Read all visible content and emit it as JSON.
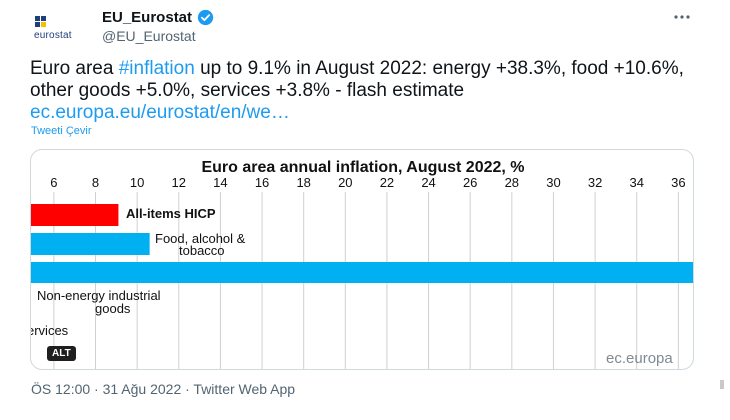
{
  "account": {
    "display_name": "EU_Eurostat",
    "handle": "@EU_Eurostat",
    "avatar_text": "eurostat"
  },
  "tweet": {
    "text_before_hashtag": "Euro area ",
    "hashtag": "#inflation",
    "text_after_hashtag": " up to 9.1% in August 2022: energy +38.3%, food +10.6%, other goods +5.0%, services +3.8% - flash estimate ",
    "link": "ec.europa.eu/eurostat/en/we…",
    "translate_label": "Tweeti Çevir",
    "meta": "ÖS 12:00 · 31 Ağu 2022 · Twitter Web App"
  },
  "media": {
    "alt_label": "ALT",
    "source": "ec.europa"
  },
  "icons": {
    "avatar": "eurostat-logo-icon",
    "verified": "verified-badge-icon",
    "more": "more-options-icon"
  },
  "colors": {
    "brand_blue": "#1d9bf0",
    "headline_red": "#ff0000",
    "series_blue": "#00b0f0",
    "eurostat_blue": "#1d3f7a"
  },
  "chart_data": {
    "type": "bar",
    "orientation": "horizontal",
    "title": "Euro area annual inflation, August 2022, %",
    "x_ticks": [
      6,
      8,
      10,
      12,
      14,
      16,
      18,
      20,
      22,
      24,
      26,
      28,
      30,
      32,
      34,
      36
    ],
    "xlim": [
      4.9,
      36.8
    ],
    "grid": true,
    "bars": [
      {
        "label": "All-items HICP",
        "value": 9.1,
        "color": "#ff0000"
      },
      {
        "label_lines": [
          "Food, alcohol &",
          "tobacco"
        ],
        "value": 10.6,
        "color": "#00b0f0"
      },
      {
        "label": "",
        "value": 38.3,
        "color": "#00b0f0"
      },
      {
        "label_lines": [
          "Non-energy industrial",
          "goods"
        ],
        "value": 5.0,
        "color": "#00b0f0"
      },
      {
        "label": "ervices",
        "value": 3.8,
        "color": "#00b0f0"
      }
    ]
  }
}
